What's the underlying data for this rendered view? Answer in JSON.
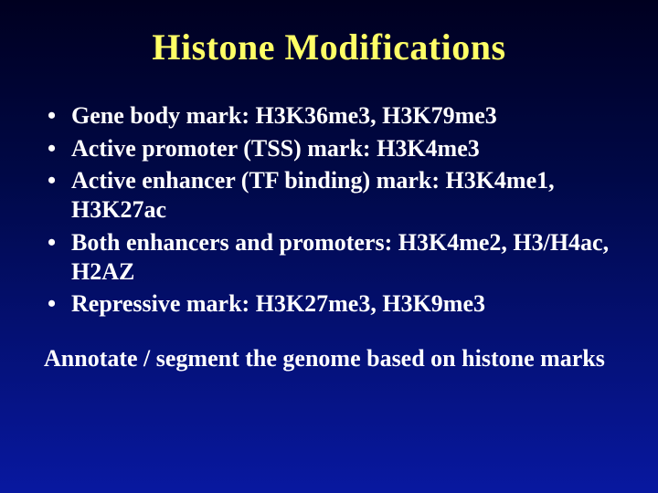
{
  "title": "Histone Modifications",
  "title_color": "#ffff66",
  "text_color": "#ffffff",
  "background_gradient": {
    "from": "#000020",
    "mid": "#000846",
    "to": "#0818a0"
  },
  "title_fontsize": 40,
  "body_fontsize": 26,
  "font_family": "Times New Roman",
  "bullets": [
    "Gene body mark: H3K36me3, H3K79me3",
    "Active promoter (TSS) mark: H3K4me3",
    "Active enhancer (TF binding) mark: H3K4me1, H3K27ac",
    "Both enhancers and promoters: H3K4me2, H3/H4ac, H2AZ",
    "Repressive mark: H3K27me3, H3K9me3"
  ],
  "footer": "Annotate / segment the genome based on histone marks"
}
